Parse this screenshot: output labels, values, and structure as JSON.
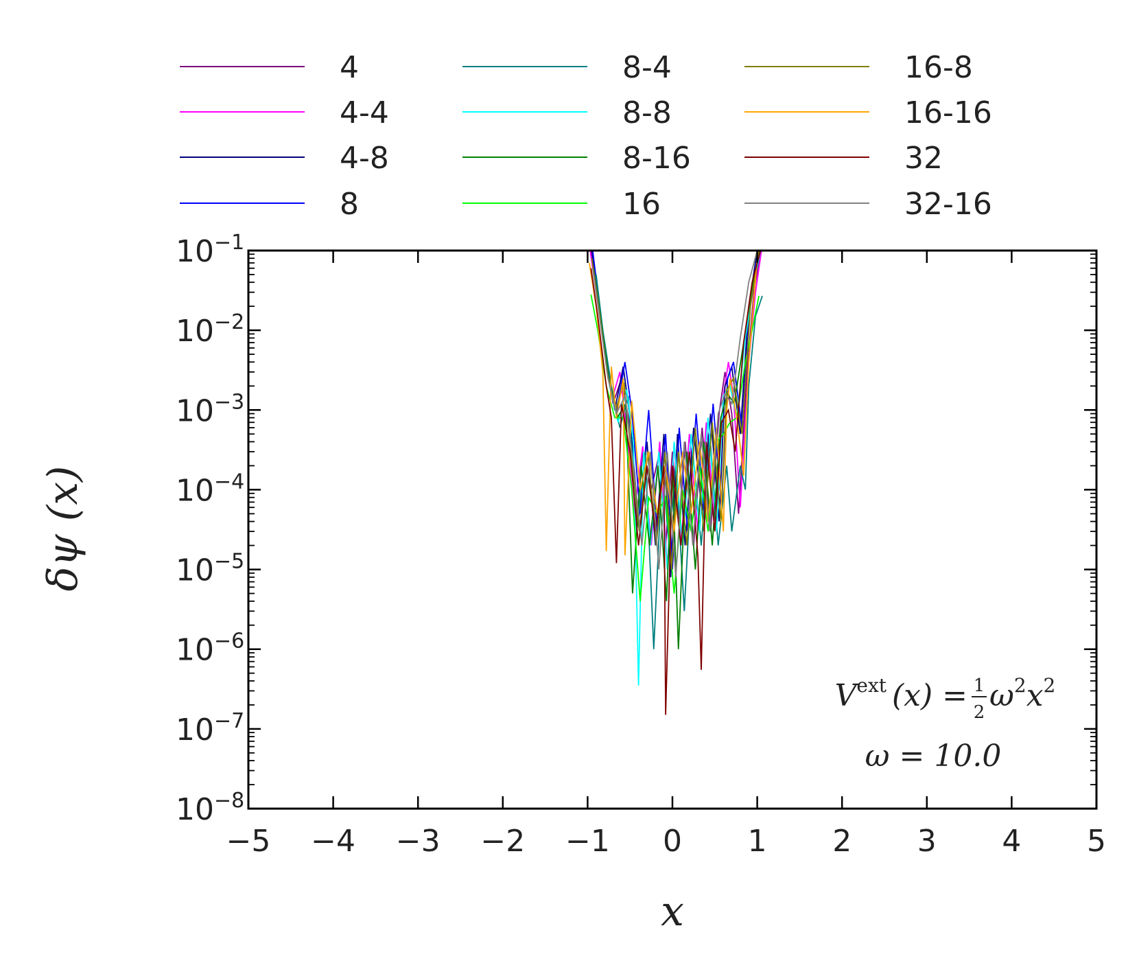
{
  "chart_data": {
    "type": "line",
    "xlabel": "x",
    "ylabel": "δψ (x)",
    "xlim": [
      -5,
      5
    ],
    "ylim": [
      1e-08,
      0.1
    ],
    "yscale": "log",
    "xticks": [
      -5,
      -4,
      -3,
      -2,
      -1,
      0,
      1,
      2,
      3,
      4,
      5
    ],
    "xtick_labels": [
      "−5",
      "−4",
      "−3",
      "−2",
      "−1",
      "0",
      "1",
      "2",
      "3",
      "4",
      "5"
    ],
    "yticks": [
      0.1,
      0.01,
      0.001,
      0.0001,
      1e-05,
      1e-06,
      1e-07,
      1e-08
    ],
    "ytick_labels": [
      {
        "base": "10",
        "exp": "−1"
      },
      {
        "base": "10",
        "exp": "−2"
      },
      {
        "base": "10",
        "exp": "−3"
      },
      {
        "base": "10",
        "exp": "−4"
      },
      {
        "base": "10",
        "exp": "−5"
      },
      {
        "base": "10",
        "exp": "−6"
      },
      {
        "base": "10",
        "exp": "−7"
      },
      {
        "base": "10",
        "exp": "−8"
      }
    ],
    "legend_placement": "top, outside plot, 3 columns",
    "annotation": {
      "line1": {
        "V": "V",
        "sup": "ext",
        "arg": "(x) =",
        "num": "1",
        "den": "2",
        "omega": "ω",
        "sq1": "2",
        "x": "x",
        "sq2": "2"
      },
      "line2": "ω = 10.0"
    },
    "series": [
      {
        "name": "4",
        "color": "#7f007f",
        "x": [
          -0.96,
          -0.9,
          -0.8,
          -0.7,
          -0.6,
          -0.5,
          -0.42,
          -0.35,
          -0.25,
          -0.15,
          -0.08,
          0.0,
          0.08,
          0.15,
          0.25,
          0.35,
          0.45,
          0.55,
          0.62,
          0.7,
          0.78,
          0.88,
          0.96,
          1.04
        ],
        "y": [
          0.1,
          0.03,
          0.006,
          0.0012,
          0.0025,
          0.0006,
          4e-05,
          0.0003,
          0.0001,
          0.0003,
          2e-05,
          0.0003,
          3e-05,
          0.0004,
          2e-05,
          0.0006,
          3e-05,
          0.0009,
          0.003,
          0.0009,
          5e-05,
          0.003,
          0.03,
          0.1
        ]
      },
      {
        "name": "4-4",
        "color": "#ff00ff",
        "x": [
          -0.97,
          -0.9,
          -0.8,
          -0.7,
          -0.62,
          -0.55,
          -0.45,
          -0.35,
          -0.25,
          -0.15,
          -0.06,
          0.02,
          0.1,
          0.2,
          0.3,
          0.4,
          0.5,
          0.6,
          0.66,
          0.72,
          0.8,
          0.9,
          0.98,
          1.05
        ],
        "y": [
          0.1,
          0.03,
          0.006,
          0.0015,
          0.003,
          0.0007,
          5e-05,
          0.00035,
          2e-05,
          0.0004,
          1e-05,
          0.0004,
          2e-05,
          0.0005,
          3e-05,
          0.0007,
          4e-05,
          0.0015,
          0.004,
          0.0015,
          6e-05,
          0.004,
          0.03,
          0.1
        ]
      },
      {
        "name": "4-8",
        "color": "#00007f",
        "x": [
          -0.95,
          -0.88,
          -0.78,
          -0.68,
          -0.58,
          -0.5,
          -0.4,
          -0.3,
          -0.2,
          -0.1,
          -0.02,
          0.06,
          0.15,
          0.25,
          0.35,
          0.45,
          0.55,
          0.62,
          0.7,
          0.8,
          0.9,
          1.0
        ],
        "y": [
          0.1,
          0.025,
          0.004,
          0.001,
          0.0035,
          0.0008,
          4e-05,
          0.0004,
          2e-05,
          0.0005,
          8e-06,
          0.0005,
          2e-05,
          0.0006,
          5e-05,
          0.0009,
          4e-05,
          0.002,
          0.0035,
          0.0005,
          0.02,
          0.1
        ]
      },
      {
        "name": "8",
        "color": "#0000ff",
        "x": [
          -0.94,
          -0.86,
          -0.76,
          -0.66,
          -0.56,
          -0.48,
          -0.38,
          -0.28,
          -0.18,
          -0.08,
          0.0,
          0.08,
          0.18,
          0.28,
          0.38,
          0.48,
          0.58,
          0.65,
          0.72,
          0.82,
          0.92,
          1.02
        ],
        "y": [
          0.1,
          0.02,
          0.003,
          0.0009,
          0.004,
          0.001,
          5e-05,
          0.001,
          3e-05,
          0.0005,
          1e-05,
          0.0006,
          3e-05,
          0.0009,
          4e-05,
          0.0012,
          6e-05,
          0.0025,
          0.004,
          0.0006,
          0.025,
          0.1
        ]
      },
      {
        "name": "8-4",
        "color": "#007f7f",
        "x": [
          -0.9,
          -0.82,
          -0.72,
          -0.62,
          -0.52,
          -0.42,
          -0.32,
          -0.22,
          -0.12,
          -0.04,
          0.04,
          0.14,
          0.24,
          0.34,
          0.44,
          0.54,
          0.64,
          0.7,
          0.8,
          0.86,
          0.9,
          0.98,
          1.06
        ],
        "y": [
          0.05,
          0.01,
          0.002,
          0.0006,
          0.0015,
          3e-05,
          0.0003,
          1e-06,
          0.0002,
          2e-05,
          0.0002,
          3e-06,
          0.0003,
          2e-05,
          0.0005,
          2e-05,
          0.0002,
          3e-05,
          0.0002,
          0.0001,
          0.002,
          0.015,
          0.027
        ]
      },
      {
        "name": "8-8",
        "color": "#00ffff",
        "x": [
          -0.92,
          -0.84,
          -0.74,
          -0.64,
          -0.54,
          -0.46,
          -0.4,
          -0.34,
          -0.26,
          -0.16,
          -0.06,
          0.02,
          0.12,
          0.22,
          0.32,
          0.42,
          0.52,
          0.6,
          0.68,
          0.76,
          0.86,
          0.96,
          1.04
        ],
        "y": [
          0.05,
          0.012,
          0.002,
          0.0007,
          0.0018,
          0.0004,
          3.5e-07,
          0.0003,
          2e-05,
          0.0003,
          1e-05,
          0.0004,
          2e-05,
          0.0005,
          3e-05,
          0.0008,
          3e-05,
          0.0015,
          0.002,
          0.0008,
          0.008,
          0.04,
          0.1
        ]
      },
      {
        "name": "8-16",
        "color": "#007f00",
        "x": [
          -0.93,
          -0.85,
          -0.75,
          -0.65,
          -0.55,
          -0.47,
          -0.37,
          -0.27,
          -0.17,
          -0.07,
          0.0,
          0.07,
          0.17,
          0.27,
          0.37,
          0.47,
          0.57,
          0.65,
          0.73,
          0.83,
          0.93,
          1.03
        ],
        "y": [
          0.06,
          0.015,
          0.0025,
          0.0008,
          0.0012,
          5e-06,
          0.0002,
          2e-05,
          0.0002,
          4e-06,
          0.0002,
          1e-06,
          0.0003,
          1e-05,
          0.0004,
          2e-05,
          0.0008,
          0.0016,
          0.0012,
          0.006,
          0.03,
          0.1
        ]
      },
      {
        "name": "16",
        "color": "#00ff00",
        "x": [
          -0.96,
          -0.88,
          -0.78,
          -0.68,
          -0.58,
          -0.48,
          -0.38,
          -0.28,
          -0.18,
          -0.08,
          0.02,
          0.12,
          0.22,
          0.32,
          0.42,
          0.52,
          0.6,
          0.68,
          0.76,
          0.86,
          0.94,
          1.02
        ],
        "y": [
          0.028,
          0.01,
          0.002,
          0.0008,
          0.0008,
          0.0001,
          4e-06,
          8e-05,
          5e-05,
          8e-05,
          5e-06,
          0.0001,
          3e-05,
          0.0002,
          3e-05,
          0.0004,
          0.0005,
          0.0007,
          0.0008,
          0.004,
          0.01,
          0.027
        ]
      },
      {
        "name": "16-8",
        "color": "#7f7f00",
        "x": [
          -0.95,
          -0.87,
          -0.77,
          -0.67,
          -0.57,
          -0.49,
          -0.39,
          -0.29,
          -0.19,
          -0.09,
          -0.01,
          0.07,
          0.17,
          0.27,
          0.37,
          0.47,
          0.57,
          0.64,
          0.72,
          0.82,
          0.92,
          1.02
        ],
        "y": [
          0.08,
          0.02,
          0.003,
          0.001,
          0.0022,
          0.0003,
          3e-05,
          0.0003,
          2e-05,
          0.0003,
          1e-05,
          0.0003,
          2e-05,
          0.0006,
          3e-05,
          0.0007,
          4e-05,
          0.0018,
          0.0025,
          0.0005,
          0.02,
          0.1
        ]
      },
      {
        "name": "16-16",
        "color": "#ffa500",
        "x": [
          -0.98,
          -0.9,
          -0.82,
          -0.78,
          -0.72,
          -0.66,
          -0.58,
          -0.56,
          -0.48,
          -0.38,
          -0.28,
          -0.18,
          -0.08,
          0.02,
          0.12,
          0.22,
          0.32,
          0.42,
          0.52,
          0.6,
          0.64,
          0.68,
          0.76,
          0.84,
          0.9,
          1.0
        ],
        "y": [
          0.07,
          0.02,
          0.003,
          1.7e-05,
          0.0035,
          0.0008,
          0.0025,
          1.5e-05,
          0.0013,
          0.0001,
          0.0003,
          5e-05,
          0.0002,
          3e-05,
          0.0003,
          5e-05,
          0.0004,
          4e-05,
          0.0006,
          3e-05,
          0.001,
          0.0025,
          0.0008,
          0.00015,
          0.004,
          0.08
        ]
      },
      {
        "name": "32",
        "color": "#7f0000",
        "x": [
          -0.96,
          -0.88,
          -0.78,
          -0.72,
          -0.66,
          -0.6,
          -0.5,
          -0.4,
          -0.3,
          -0.2,
          -0.1,
          -0.08,
          0.0,
          0.1,
          0.2,
          0.3,
          0.34,
          0.4,
          0.5,
          0.58,
          0.66,
          0.74,
          0.84,
          0.94,
          1.04
        ],
        "y": [
          0.06,
          0.015,
          0.002,
          0.0008,
          1.2e-05,
          0.0012,
          0.0003,
          2e-05,
          0.0002,
          3e-05,
          0.0002,
          1.5e-07,
          0.0002,
          2e-05,
          0.0003,
          1.5e-05,
          5.5e-07,
          0.0004,
          3e-05,
          0.0007,
          0.001,
          0.0003,
          0.007,
          0.04,
          0.1
        ]
      },
      {
        "name": "32-16",
        "color": "#808080",
        "x": [
          -0.94,
          -0.86,
          -0.76,
          -0.66,
          -0.56,
          -0.46,
          -0.36,
          -0.26,
          -0.16,
          -0.06,
          0.04,
          0.14,
          0.24,
          0.34,
          0.44,
          0.54,
          0.62,
          0.7,
          0.8,
          0.9,
          1.0
        ],
        "y": [
          0.06,
          0.015,
          0.0025,
          0.0009,
          0.0015,
          0.0002,
          2e-05,
          0.0003,
          1e-05,
          0.0003,
          8e-06,
          0.0004,
          2e-05,
          0.0005,
          3e-05,
          0.0009,
          0.0016,
          0.0012,
          0.008,
          0.04,
          0.1
        ]
      }
    ]
  }
}
